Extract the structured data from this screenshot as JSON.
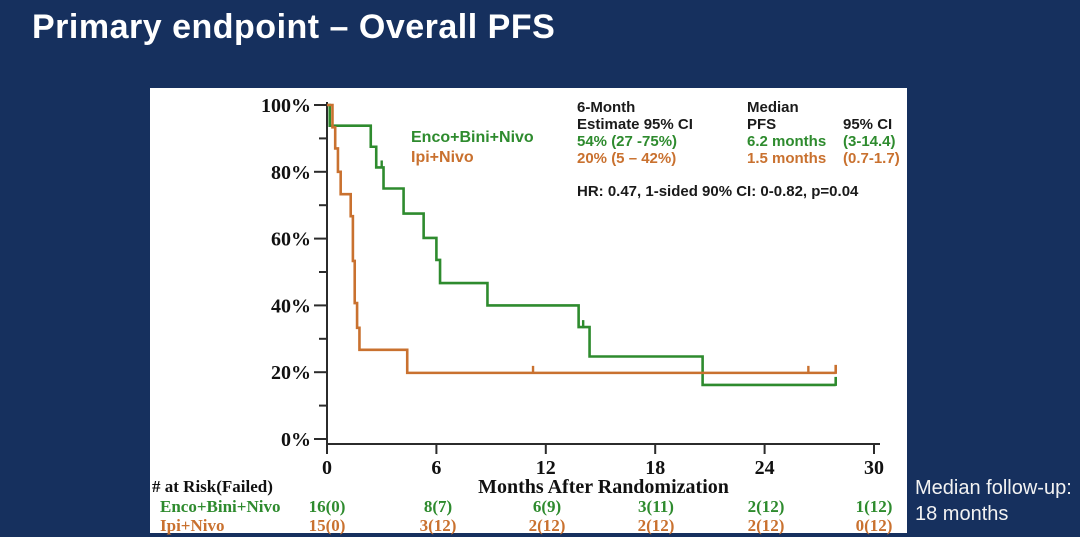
{
  "slide": {
    "title": "Primary endpoint – Overall PFS",
    "background_color": "#16305e",
    "followup_line1": "Median follow-up:",
    "followup_line2": "18 months"
  },
  "legend": {
    "series1_label": "Enco+Bini+Nivo",
    "series2_label": "Ipi+Nivo"
  },
  "stats": {
    "col1_header1": "6-Month",
    "col1_header2": "Estimate 95% CI",
    "col1_row1": "54% (27 -75%)",
    "col1_row2": "20% (5 – 42%)",
    "col2_header": "Median",
    "col2_sub_left": "PFS",
    "col2_sub_right": "95% CI",
    "col2_row1_val": "6.2 months",
    "col2_row1_ci": "(3-14.4)",
    "col2_row2_val": "1.5 months",
    "col2_row2_ci": "(0.7-1.7)",
    "hr_line": "HR: 0.47, 1-sided 90% CI: 0-0.82, p=0.04"
  },
  "risk_table": {
    "header": "# at Risk(Failed)",
    "rows": [
      {
        "label": "Enco+Bini+Nivo",
        "color": "#2e8b2e",
        "values": [
          "16(0)",
          "8(7)",
          "6(9)",
          "3(11)",
          "2(12)",
          "1(12)"
        ]
      },
      {
        "label": "Ipi+Nivo",
        "color": "#c9712f",
        "values": [
          "15(0)",
          "3(12)",
          "2(12)",
          "2(12)",
          "2(12)",
          "0(12)"
        ]
      }
    ]
  },
  "chart_data": {
    "type": "line",
    "subtype": "kaplan-meier-step",
    "xlabel": "Months After Randomization",
    "ylabel": "",
    "xlim": [
      0,
      30
    ],
    "ylim": [
      0,
      100
    ],
    "x_ticks": [
      0,
      6,
      12,
      18,
      24,
      30
    ],
    "y_ticks_major": [
      0,
      20,
      40,
      60,
      80,
      100
    ],
    "y_ticks_minor": [
      10,
      30,
      50,
      70,
      90
    ],
    "y_tick_suffix": "%",
    "grid": false,
    "axis_color": "#2b2b2b",
    "series": [
      {
        "name": "Enco+Bini+Nivo",
        "color": "#2e8b2e",
        "start_pct": 100,
        "end_month": 27.9,
        "steps": [
          [
            0.15,
            93.8
          ],
          [
            2.4,
            87.5
          ],
          [
            2.7,
            81.3
          ],
          [
            3.1,
            75
          ],
          [
            4.2,
            67.5
          ],
          [
            5.3,
            60.2
          ],
          [
            6.0,
            53.6
          ],
          [
            6.2,
            46.7
          ],
          [
            8.8,
            40
          ],
          [
            13.8,
            33.5
          ],
          [
            14.4,
            24.7
          ],
          [
            20.6,
            16.2
          ]
        ],
        "censors": [
          [
            3.0,
            81.3
          ],
          [
            14.05,
            33.5
          ]
        ],
        "terminal_censor": true,
        "six_month_estimate": "54% (27 -75%)",
        "median_pfs_months": 6.2
      },
      {
        "name": "Ipi+Nivo",
        "color": "#c9712f",
        "start_pct": 100,
        "end_month": 27.9,
        "steps": [
          [
            0.3,
            93.3
          ],
          [
            0.45,
            87
          ],
          [
            0.6,
            80
          ],
          [
            0.75,
            73.3
          ],
          [
            1.3,
            66.7
          ],
          [
            1.42,
            53.3
          ],
          [
            1.52,
            40.7
          ],
          [
            1.65,
            33.3
          ],
          [
            1.78,
            26.7
          ],
          [
            4.4,
            19.8
          ]
        ],
        "censors": [
          [
            11.3,
            19.8
          ],
          [
            26.4,
            19.8
          ]
        ],
        "terminal_censor": true,
        "six_month_estimate": "20% (5 – 42%)",
        "median_pfs_months": 1.5
      }
    ]
  }
}
